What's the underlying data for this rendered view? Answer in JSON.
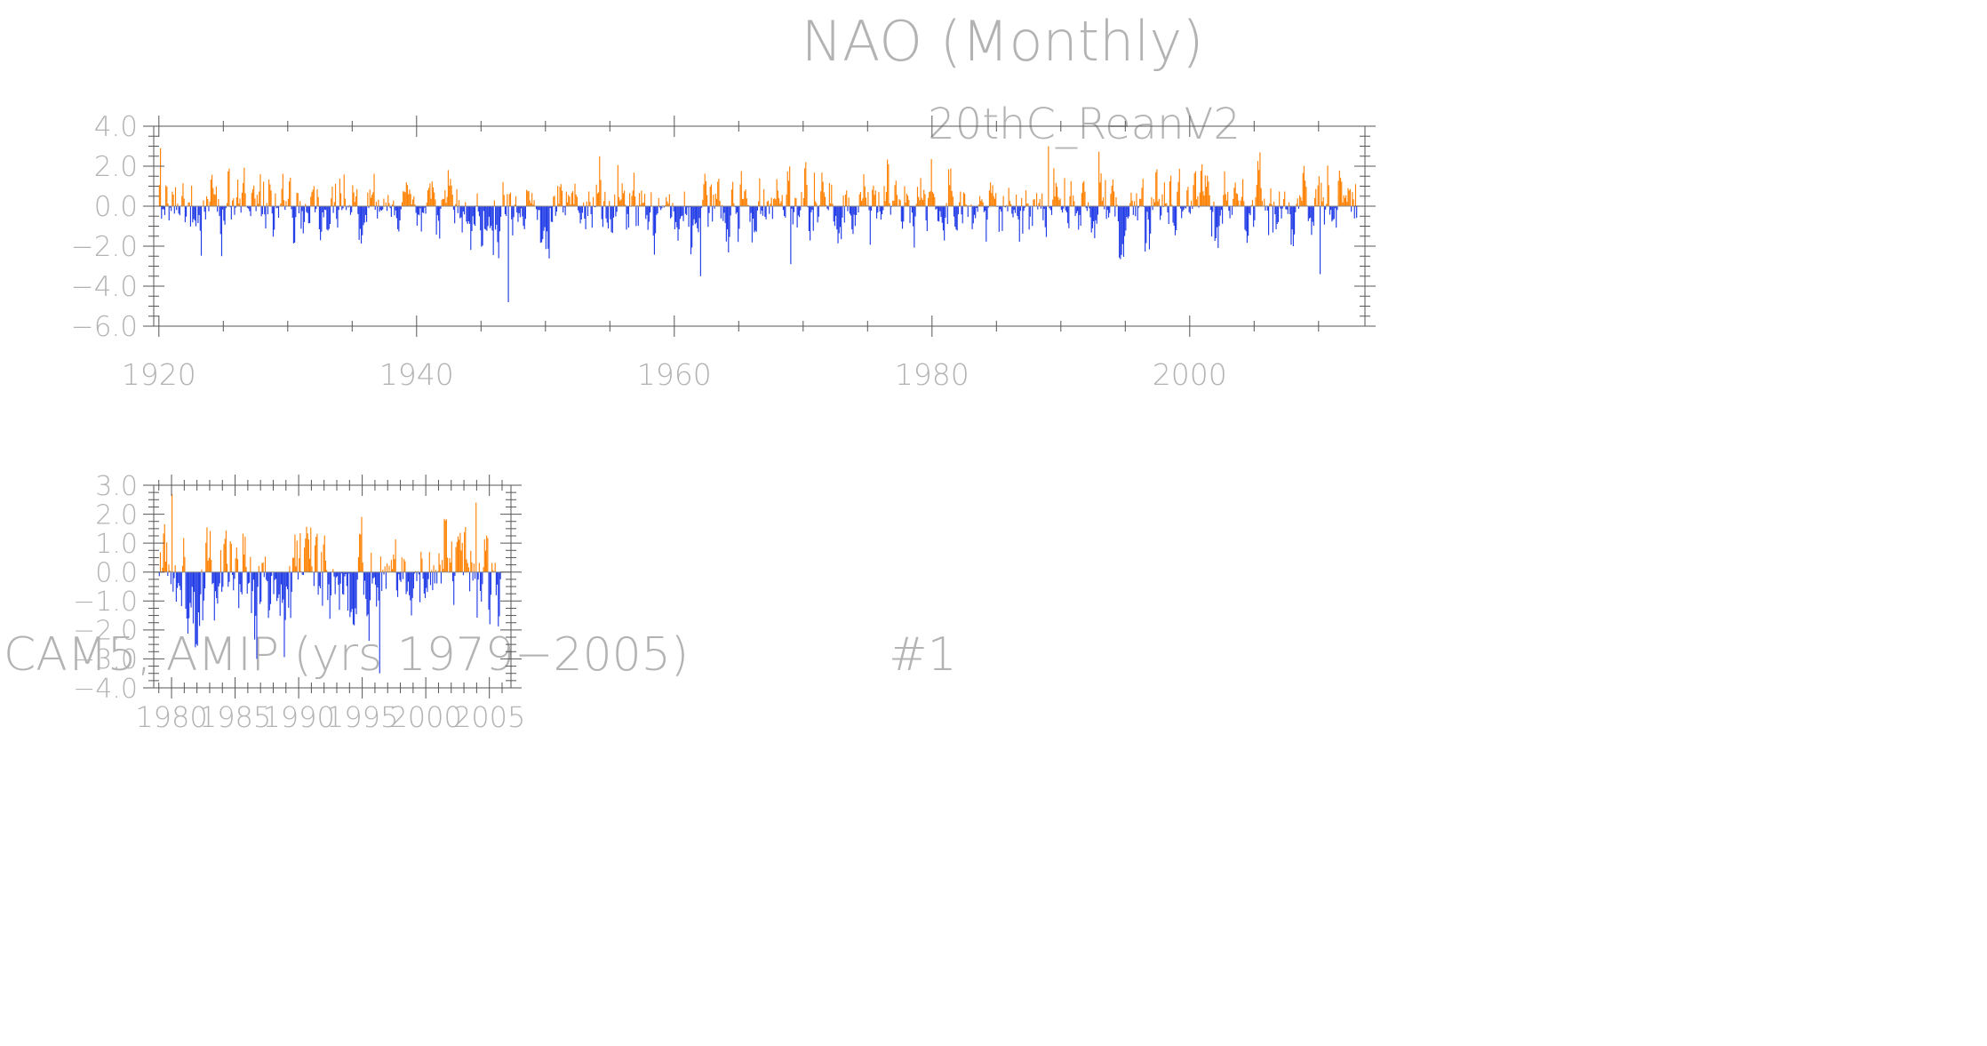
{
  "title": "NAO (Monthly)",
  "chart_data": [
    {
      "type": "bar",
      "title": "20thC_ReanV2",
      "subtitle": "",
      "xlabel": "",
      "ylabel": "",
      "x_range": [
        1920,
        2012
      ],
      "xlim": [
        1919.6,
        2013.6
      ],
      "ylim": [
        -6.0,
        4.0
      ],
      "yticks": [
        4.0,
        2.0,
        0.0,
        -2.0,
        -4.0,
        -6.0
      ],
      "ytick_labels": [
        "4.0",
        "2.0",
        "0.0",
        "−2.0",
        "−4.0",
        "−6.0"
      ],
      "xticks": [
        1920,
        1940,
        1960,
        1980,
        2000
      ],
      "xtick_labels": [
        "1920",
        "1940",
        "1960",
        "1980",
        "2000"
      ],
      "positive_color": "#ff8000",
      "negative_color": "#1f3ae6",
      "notable_values": [
        {
          "year": 1920.1,
          "value": 2.9
        },
        {
          "year": 1924.8,
          "value": -2.5
        },
        {
          "year": 1947.1,
          "value": -4.8
        },
        {
          "year": 1962.0,
          "value": -3.5
        },
        {
          "year": 1969.0,
          "value": -2.9
        },
        {
          "year": 1989.0,
          "value": 3.0
        },
        {
          "year": 2010.1,
          "value": -3.4
        }
      ]
    },
    {
      "type": "bar",
      "title": "CAM5, AMIP (yrs 1979−2005)",
      "run_label": "#1",
      "xlabel": "",
      "ylabel": "",
      "x_range": [
        1979,
        2005
      ],
      "xlim": [
        1978.6,
        2006.7
      ],
      "ylim": [
        -4.0,
        3.0
      ],
      "yticks": [
        3.0,
        2.0,
        1.0,
        0.0,
        -1.0,
        -2.0,
        -3.0,
        -4.0
      ],
      "ytick_labels": [
        "3.0",
        "2.0",
        "1.0",
        "0.0",
        "−1.0",
        "−2.0",
        "−3.0",
        "−4.0"
      ],
      "xticks": [
        1980,
        1985,
        1990,
        1995,
        2000,
        2005
      ],
      "xtick_labels": [
        "1980",
        "1985",
        "1990",
        "1995",
        "2000",
        "2005"
      ],
      "positive_color": "#ff8000",
      "negative_color": "#1f3ae6",
      "notable_values": [
        {
          "year": 1980.0,
          "value": 2.7
        },
        {
          "year": 1981.8,
          "value": -2.6
        },
        {
          "year": 1986.7,
          "value": -3.0
        },
        {
          "year": 1996.3,
          "value": -3.5
        },
        {
          "year": 2003.9,
          "value": 2.4
        }
      ]
    }
  ]
}
